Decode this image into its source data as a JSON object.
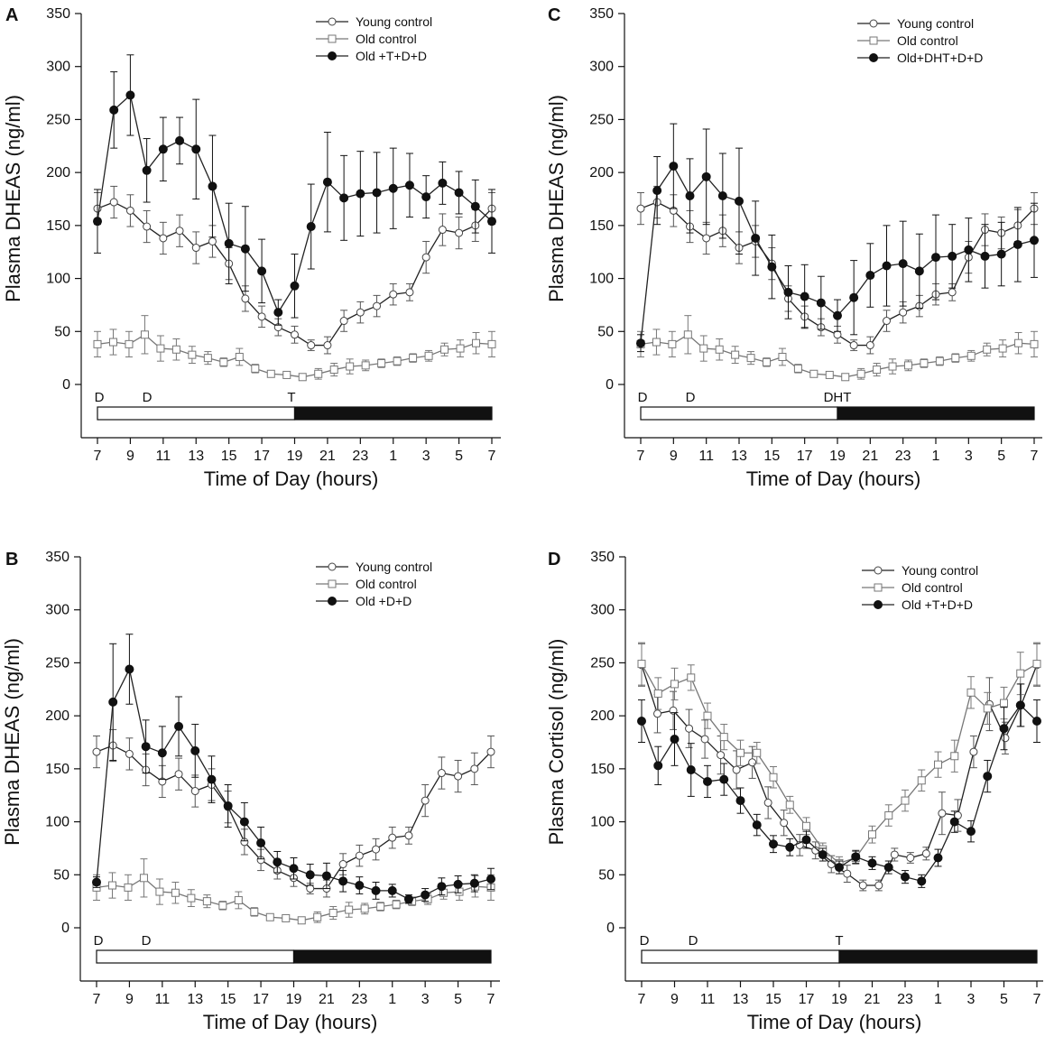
{
  "figure": {
    "x_ticks": [
      "7",
      "9",
      "11",
      "13",
      "15",
      "17",
      "19",
      "21",
      "23",
      "1",
      "3",
      "5",
      "7"
    ]
  },
  "chart_data": [
    {
      "id": "A",
      "letter": "A",
      "type": "line",
      "xlabel": "Time of Day (hours)",
      "ylabel": "Plasma DHEAS (ng/ml)",
      "ylim": [
        0,
        350
      ],
      "yticks": [
        0,
        50,
        100,
        150,
        200,
        250,
        300,
        350
      ],
      "annotations": [
        "D",
        "D",
        "T"
      ],
      "series": [
        {
          "name": "Young control",
          "marker": "circle-open",
          "values": [
            166,
            172,
            164,
            149,
            138,
            145,
            129,
            135,
            114,
            81,
            64,
            54,
            47,
            37,
            37,
            60,
            68,
            74,
            85,
            87,
            120,
            146,
            143,
            150,
            166
          ],
          "errors": [
            15,
            15,
            15,
            15,
            15,
            15,
            15,
            15,
            15,
            12,
            10,
            8,
            8,
            5,
            8,
            10,
            10,
            10,
            10,
            8,
            15,
            15,
            15,
            15,
            15
          ]
        },
        {
          "name": "Old control",
          "marker": "square-open",
          "values": [
            38,
            40,
            38,
            47,
            34,
            33,
            28,
            25,
            21,
            26,
            15,
            10,
            9,
            7,
            10,
            14,
            17,
            18,
            20,
            22,
            25,
            27,
            33,
            34,
            39,
            38
          ],
          "errors": [
            12,
            12,
            12,
            18,
            12,
            10,
            8,
            6,
            4,
            8,
            4,
            3,
            3,
            3,
            5,
            6,
            7,
            5,
            4,
            4,
            4,
            5,
            6,
            8,
            10,
            12
          ]
        },
        {
          "name": "Old +T+D+D",
          "marker": "circle-filled",
          "values": [
            154,
            259,
            273,
            202,
            222,
            230,
            222,
            187,
            133,
            128,
            107,
            68,
            93,
            149,
            191,
            176,
            180,
            181,
            185,
            188,
            177,
            190,
            181,
            168,
            154
          ],
          "errors": [
            30,
            36,
            38,
            30,
            30,
            22,
            47,
            48,
            38,
            40,
            30,
            12,
            30,
            40,
            47,
            40,
            40,
            38,
            38,
            30,
            20,
            20,
            20,
            25,
            30
          ]
        }
      ]
    },
    {
      "id": "C",
      "letter": "C",
      "type": "line",
      "xlabel": "Time of Day (hours)",
      "ylabel": "Plasma DHEAS (ng/ml)",
      "ylim": [
        0,
        350
      ],
      "yticks": [
        0,
        50,
        100,
        150,
        200,
        250,
        300,
        350
      ],
      "annotations": [
        "D",
        "D",
        "DHT"
      ],
      "series": [
        {
          "name": "Young control",
          "marker": "circle-open",
          "values": [
            166,
            172,
            164,
            149,
            138,
            145,
            129,
            135,
            114,
            81,
            64,
            54,
            47,
            37,
            37,
            60,
            68,
            74,
            85,
            87,
            120,
            146,
            143,
            150,
            166
          ],
          "errors": [
            15,
            15,
            15,
            15,
            15,
            15,
            15,
            15,
            15,
            12,
            10,
            8,
            8,
            5,
            8,
            10,
            10,
            10,
            10,
            8,
            15,
            15,
            15,
            15,
            15
          ]
        },
        {
          "name": "Old control",
          "marker": "square-open",
          "values": [
            38,
            40,
            38,
            47,
            34,
            33,
            28,
            25,
            21,
            26,
            15,
            10,
            9,
            7,
            10,
            14,
            17,
            18,
            20,
            22,
            25,
            27,
            33,
            34,
            39,
            38
          ],
          "errors": [
            12,
            12,
            12,
            18,
            12,
            10,
            8,
            6,
            4,
            8,
            4,
            3,
            3,
            3,
            5,
            6,
            7,
            5,
            4,
            4,
            4,
            5,
            6,
            8,
            10,
            12
          ]
        },
        {
          "name": "Old+DHT+D+D",
          "marker": "circle-filled",
          "values": [
            39,
            183,
            206,
            178,
            196,
            178,
            173,
            138,
            111,
            87,
            83,
            77,
            65,
            82,
            103,
            112,
            114,
            107,
            120,
            121,
            127,
            121,
            123,
            132,
            136
          ],
          "errors": [
            8,
            32,
            40,
            35,
            45,
            40,
            50,
            35,
            30,
            25,
            30,
            25,
            15,
            35,
            30,
            38,
            40,
            35,
            40,
            30,
            30,
            30,
            30,
            35,
            35
          ]
        }
      ]
    },
    {
      "id": "B",
      "letter": "B",
      "type": "line",
      "xlabel": "Time of Day (hours)",
      "ylabel": "Plasma DHEAS (ng/ml)",
      "ylim": [
        0,
        350
      ],
      "yticks": [
        0,
        50,
        100,
        150,
        200,
        250,
        300,
        350
      ],
      "annotations": [
        "D",
        "D"
      ],
      "series": [
        {
          "name": "Young control",
          "marker": "circle-open",
          "values": [
            166,
            172,
            164,
            149,
            138,
            145,
            129,
            135,
            114,
            81,
            64,
            54,
            47,
            37,
            37,
            60,
            68,
            74,
            85,
            87,
            120,
            146,
            143,
            150,
            166
          ],
          "errors": [
            15,
            15,
            15,
            15,
            15,
            15,
            15,
            15,
            15,
            12,
            10,
            8,
            8,
            5,
            8,
            10,
            10,
            10,
            10,
            8,
            15,
            15,
            15,
            15,
            15
          ]
        },
        {
          "name": "Old control",
          "marker": "square-open",
          "values": [
            38,
            40,
            38,
            47,
            34,
            33,
            28,
            25,
            21,
            26,
            15,
            10,
            9,
            7,
            10,
            14,
            17,
            18,
            20,
            22,
            25,
            27,
            33,
            34,
            39,
            38
          ],
          "errors": [
            12,
            12,
            12,
            18,
            12,
            10,
            8,
            6,
            4,
            8,
            4,
            3,
            3,
            3,
            5,
            6,
            7,
            5,
            4,
            4,
            4,
            5,
            6,
            8,
            10,
            12
          ]
        },
        {
          "name": "Old +D+D",
          "marker": "circle-filled",
          "values": [
            43,
            213,
            244,
            171,
            165,
            190,
            167,
            140,
            115,
            100,
            80,
            62,
            56,
            50,
            49,
            44,
            40,
            35,
            35,
            27,
            31,
            39,
            41,
            42,
            46
          ],
          "errors": [
            5,
            55,
            33,
            25,
            25,
            28,
            25,
            22,
            20,
            18,
            15,
            10,
            10,
            10,
            12,
            10,
            8,
            8,
            6,
            4,
            6,
            8,
            8,
            8,
            10
          ]
        }
      ]
    },
    {
      "id": "D",
      "letter": "D",
      "type": "line",
      "xlabel": "Time of Day (hours)",
      "ylabel": "Plasma Cortisol (ng/ml)",
      "ylim": [
        0,
        350
      ],
      "yticks": [
        0,
        50,
        100,
        150,
        200,
        250,
        300,
        350
      ],
      "annotations": [
        "D",
        "D",
        "T"
      ],
      "series": [
        {
          "name": "Young control",
          "marker": "circle-open",
          "values": [
            248,
            202,
            205,
            188,
            178,
            163,
            149,
            156,
            118,
            99,
            78,
            73,
            60,
            51,
            40,
            40,
            69,
            66,
            70,
            108,
            106,
            166,
            211,
            179,
            210,
            248
          ],
          "errors": [
            20,
            18,
            18,
            18,
            18,
            18,
            18,
            15,
            15,
            12,
            10,
            8,
            8,
            8,
            5,
            5,
            6,
            5,
            6,
            20,
            15,
            15,
            25,
            15,
            20,
            20
          ]
        },
        {
          "name": "Old control",
          "marker": "square-open",
          "values": [
            249,
            221,
            230,
            236,
            200,
            180,
            165,
            165,
            142,
            116,
            96,
            74,
            61,
            66,
            88,
            106,
            120,
            139,
            154,
            162,
            222,
            207,
            212,
            240,
            249
          ],
          "errors": [
            20,
            15,
            15,
            12,
            12,
            12,
            12,
            10,
            10,
            8,
            8,
            6,
            6,
            6,
            8,
            10,
            10,
            10,
            12,
            15,
            15,
            15,
            15,
            20,
            20
          ]
        },
        {
          "name": "Old +T+D+D",
          "marker": "circle-filled",
          "values": [
            195,
            153,
            178,
            149,
            138,
            140,
            120,
            97,
            79,
            76,
            83,
            69,
            57,
            67,
            61,
            57,
            48,
            44,
            66,
            100,
            91,
            143,
            188,
            210,
            195
          ],
          "errors": [
            20,
            18,
            25,
            25,
            15,
            15,
            12,
            10,
            8,
            8,
            8,
            6,
            6,
            6,
            6,
            6,
            6,
            6,
            8,
            10,
            10,
            15,
            20,
            20,
            20
          ]
        }
      ]
    }
  ]
}
